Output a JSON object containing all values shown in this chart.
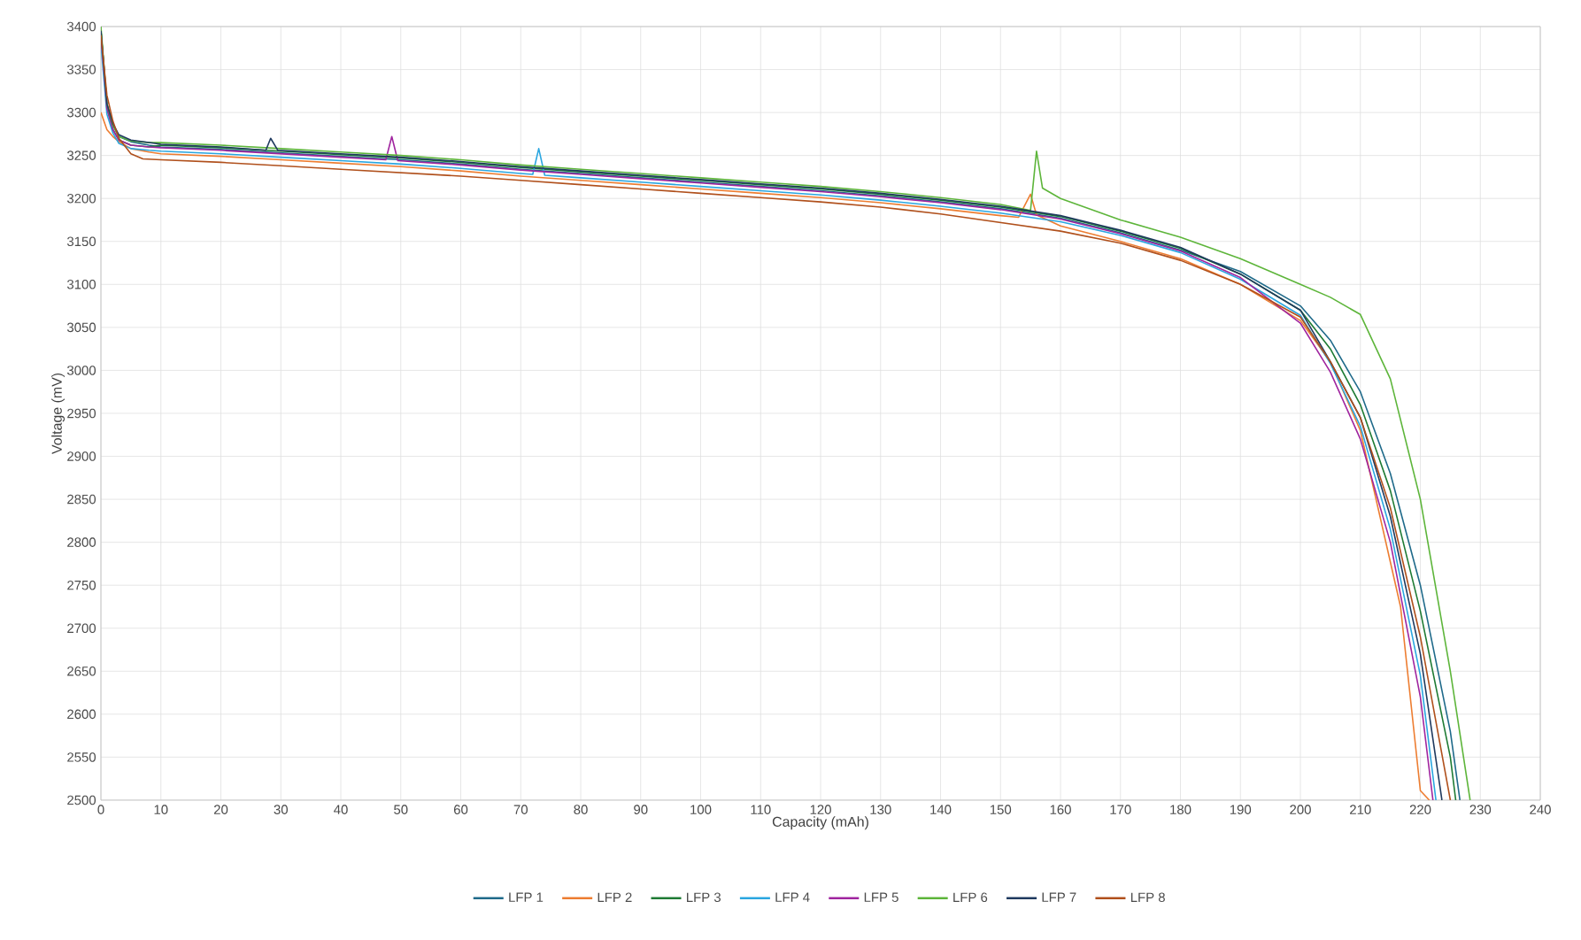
{
  "chart_data": {
    "type": "line",
    "xlabel": "Capacity (mAh)",
    "ylabel": "Voltage (mV)",
    "xlim": [
      0,
      240
    ],
    "ylim": [
      2500,
      3400
    ],
    "xticks": [
      0,
      10,
      20,
      30,
      40,
      50,
      60,
      70,
      80,
      90,
      100,
      110,
      120,
      130,
      140,
      150,
      160,
      170,
      180,
      190,
      200,
      210,
      220,
      230,
      240
    ],
    "yticks": [
      2500,
      2550,
      2600,
      2650,
      2700,
      2750,
      2800,
      2850,
      2900,
      2950,
      3000,
      3050,
      3100,
      3150,
      3200,
      3250,
      3300,
      3350,
      3400
    ],
    "grid": true,
    "legend": "bottom",
    "marker": "none",
    "line_style": "solid",
    "series": [
      {
        "name": "LFP 1",
        "color": "#1f6a8a",
        "x": [
          0,
          1,
          2,
          3,
          5,
          8,
          10,
          20,
          30,
          40,
          50,
          60,
          70,
          80,
          90,
          100,
          110,
          120,
          130,
          140,
          150,
          160,
          170,
          180,
          190,
          200,
          205,
          210,
          215,
          220,
          225,
          226.6
        ],
        "values": [
          3395,
          3310,
          3285,
          3272,
          3266,
          3262,
          3260,
          3257,
          3253,
          3249,
          3245,
          3240,
          3234,
          3229,
          3224,
          3219,
          3214,
          3209,
          3203,
          3196,
          3188,
          3177,
          3160,
          3140,
          3115,
          3075,
          3035,
          2975,
          2880,
          2750,
          2580,
          2500
        ]
      },
      {
        "name": "LFP 2",
        "color": "#ed7d31",
        "x": [
          0,
          1,
          2,
          3,
          5,
          8,
          10,
          20,
          30,
          40,
          50,
          60,
          70,
          80,
          90,
          100,
          110,
          120,
          130,
          140,
          150,
          153,
          155,
          156,
          160,
          170,
          180,
          190,
          200,
          205,
          210,
          216.7,
          220,
          221.5
        ],
        "values": [
          3300,
          3280,
          3272,
          3266,
          3258,
          3254,
          3252,
          3249,
          3245,
          3241,
          3237,
          3232,
          3226,
          3221,
          3216,
          3211,
          3206,
          3201,
          3195,
          3188,
          3180,
          3178,
          3205,
          3181,
          3168,
          3150,
          3130,
          3100,
          3058,
          3010,
          2930,
          2725,
          2511,
          2500
        ]
      },
      {
        "name": "LFP 3",
        "color": "#1e7b34",
        "x": [
          0,
          1,
          2,
          3,
          5,
          8,
          10,
          20,
          30,
          40,
          50,
          60,
          70,
          80,
          90,
          100,
          110,
          120,
          130,
          140,
          150,
          160,
          170,
          180,
          190,
          200,
          205,
          210,
          215,
          220,
          225,
          225.9
        ],
        "values": [
          3395,
          3305,
          3280,
          3268,
          3262,
          3260,
          3262,
          3259,
          3255,
          3251,
          3247,
          3242,
          3236,
          3231,
          3226,
          3221,
          3216,
          3211,
          3205,
          3198,
          3190,
          3179,
          3162,
          3142,
          3112,
          3070,
          3025,
          2960,
          2860,
          2720,
          2550,
          2500
        ]
      },
      {
        "name": "LFP 4",
        "color": "#2aa6e0",
        "x": [
          0,
          1,
          2,
          3,
          5,
          8,
          10,
          20,
          30,
          40,
          50,
          60,
          70,
          72,
          73,
          74,
          80,
          90,
          100,
          110,
          120,
          130,
          140,
          150,
          160,
          170,
          180,
          190,
          200,
          205,
          210,
          215,
          220,
          222.6
        ],
        "values": [
          3380,
          3298,
          3276,
          3264,
          3258,
          3256,
          3255,
          3252,
          3248,
          3244,
          3240,
          3235,
          3229,
          3228,
          3258,
          3227,
          3224,
          3219,
          3214,
          3209,
          3204,
          3198,
          3191,
          3183,
          3173,
          3157,
          3137,
          3106,
          3064,
          3008,
          2935,
          2815,
          2645,
          2500
        ]
      },
      {
        "name": "LFP 5",
        "color": "#a0259f",
        "x": [
          0,
          1,
          2,
          3,
          5,
          8,
          10,
          20,
          30,
          40,
          47.5,
          48.5,
          49.5,
          60,
          70,
          80,
          90,
          100,
          110,
          120,
          130,
          140,
          150,
          160,
          170,
          180,
          190,
          200,
          205,
          210,
          215,
          220,
          222.1
        ],
        "values": [
          3390,
          3305,
          3280,
          3268,
          3262,
          3260,
          3259,
          3256,
          3252,
          3248,
          3245,
          3272,
          3244,
          3239,
          3233,
          3228,
          3223,
          3218,
          3213,
          3208,
          3202,
          3195,
          3187,
          3176,
          3159,
          3139,
          3108,
          3055,
          2998,
          2920,
          2800,
          2620,
          2500
        ]
      },
      {
        "name": "LFP 6",
        "color": "#5db53a",
        "x": [
          0,
          1,
          2,
          3,
          5,
          8,
          10,
          20,
          30,
          40,
          50,
          60,
          70,
          80,
          90,
          100,
          110,
          120,
          130,
          140,
          150,
          155,
          156,
          157,
          160,
          170,
          180,
          190,
          200,
          205,
          210,
          215,
          220,
          225,
          228.3
        ],
        "values": [
          3400,
          3310,
          3285,
          3272,
          3267,
          3265,
          3265,
          3262,
          3258,
          3254,
          3250,
          3245,
          3239,
          3234,
          3229,
          3224,
          3219,
          3214,
          3208,
          3201,
          3193,
          3186,
          3255,
          3212,
          3200,
          3175,
          3155,
          3130,
          3100,
          3085,
          3065,
          2990,
          2850,
          2650,
          2500
        ]
      },
      {
        "name": "LFP 7",
        "color": "#1f3a5f",
        "x": [
          0,
          1,
          2,
          3,
          5,
          8,
          10,
          20,
          27.5,
          28.3,
          29.5,
          40,
          50,
          60,
          70,
          80,
          90,
          100,
          110,
          120,
          130,
          140,
          150,
          160,
          170,
          180,
          190,
          200,
          205,
          210,
          215,
          220,
          223.6
        ],
        "values": [
          3395,
          3310,
          3287,
          3274,
          3268,
          3265,
          3263,
          3260,
          3256,
          3270,
          3256,
          3252,
          3248,
          3243,
          3237,
          3232,
          3227,
          3222,
          3217,
          3212,
          3206,
          3199,
          3191,
          3180,
          3163,
          3143,
          3112,
          3070,
          3010,
          2945,
          2830,
          2670,
          2500
        ]
      },
      {
        "name": "LFP 8",
        "color": "#b0501c",
        "x": [
          0,
          1,
          2,
          3,
          5,
          7,
          10,
          20,
          30,
          40,
          50,
          60,
          70,
          80,
          90,
          100,
          110,
          120,
          130,
          140,
          150,
          160,
          170,
          180,
          190,
          200,
          205,
          210,
          215,
          220,
          225
        ],
        "values": [
          3390,
          3320,
          3290,
          3270,
          3252,
          3246,
          3245,
          3242,
          3238,
          3234,
          3230,
          3226,
          3221,
          3216,
          3211,
          3206,
          3201,
          3196,
          3190,
          3182,
          3172,
          3162,
          3148,
          3128,
          3100,
          3062,
          3010,
          2945,
          2840,
          2690,
          2500
        ]
      }
    ]
  }
}
